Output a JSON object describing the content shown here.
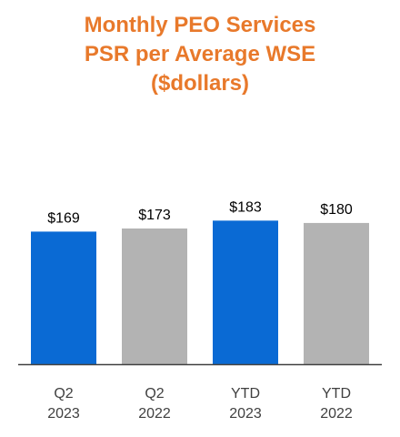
{
  "title_lines": [
    "Monthly PEO Services",
    "PSR per Average WSE",
    "($dollars)"
  ],
  "colors": {
    "title": "#E8792B",
    "axis": "#404040",
    "text": "#000000",
    "category_text": "#404040"
  },
  "chart_data": {
    "type": "bar",
    "title": "Monthly PEO Services PSR per Average WSE ($dollars)",
    "categories": [
      [
        "Q2",
        "2023"
      ],
      [
        "Q2",
        "2022"
      ],
      [
        "YTD",
        "2023"
      ],
      [
        "YTD",
        "2022"
      ]
    ],
    "values": [
      169,
      173,
      183,
      180
    ],
    "data_labels": [
      "$169",
      "$173",
      "$183",
      "$180"
    ],
    "bar_colors": [
      "#0A6AD4",
      "#B3B3B3",
      "#0A6AD4",
      "#B3B3B3"
    ],
    "xlabel": "",
    "ylabel": "",
    "ylim": [
      0,
      195
    ],
    "grid": false,
    "legend": "none"
  }
}
